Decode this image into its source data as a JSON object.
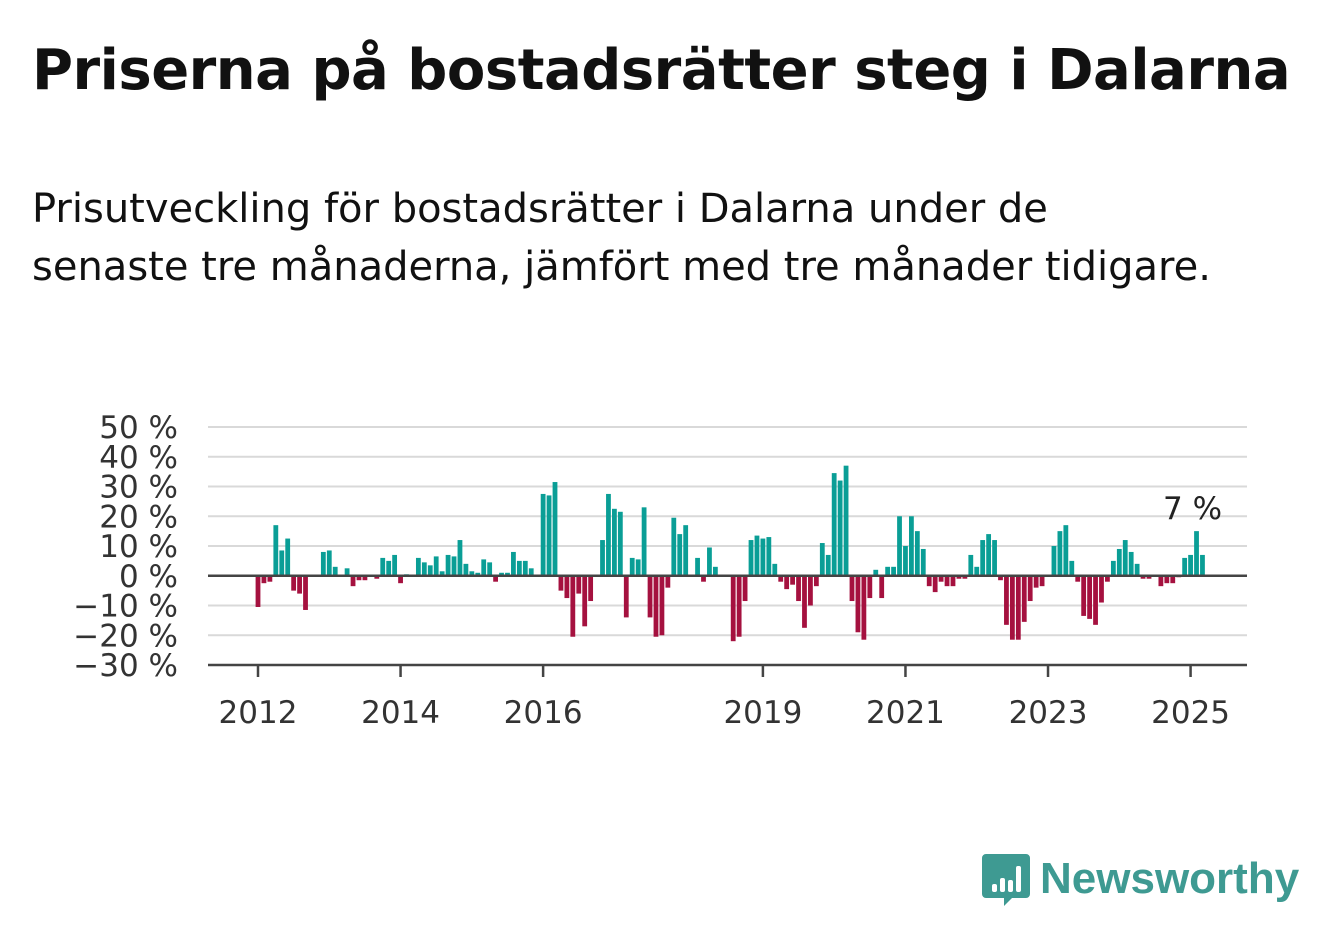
{
  "title": "Priserna på bostadsrätter steg i Dalarna",
  "subtitle": "Prisutveckling för bostadsrätter i Dalarna under de senaste tre månaderna, jämfört med tre månader tidigare.",
  "logo": {
    "text": "Newsworthy",
    "icon": "bar-chart-pin-icon"
  },
  "colors": {
    "positive": "#0a9e96",
    "negative": "#a5113f",
    "grid": "#d9d9d9",
    "axis": "#444444",
    "logo": "#3e9a92"
  },
  "chart_data": {
    "type": "bar",
    "title": "Priserna på bostadsrätter steg i Dalarna",
    "ylabel": "",
    "ylim": [
      -30,
      50
    ],
    "y_ticks": [
      50,
      40,
      30,
      20,
      10,
      0,
      -10,
      -20,
      -30
    ],
    "y_tick_labels": [
      "50 %",
      "40 %",
      "30 %",
      "20 %",
      "10 %",
      "0 %",
      "−10 %",
      "−20 %",
      "−30 %"
    ],
    "x_ticks": [
      {
        "label": "2012",
        "index": 0
      },
      {
        "label": "2014",
        "index": 24
      },
      {
        "label": "2016",
        "index": 48
      },
      {
        "label": "2019",
        "index": 85
      },
      {
        "label": "2021",
        "index": 109
      },
      {
        "label": "2023",
        "index": 133
      },
      {
        "label": "2025",
        "index": 157
      }
    ],
    "last_label": "7 %",
    "grid": true,
    "values": [
      -10.5,
      -2.5,
      -2,
      17,
      8.5,
      12.5,
      -5,
      -6,
      -11.5,
      0,
      0,
      8,
      8.5,
      3,
      0,
      2.5,
      -3.5,
      -1.5,
      -1.5,
      0,
      -1,
      6,
      5,
      7,
      -2.5,
      0.5,
      0,
      6,
      4.5,
      3.5,
      6.5,
      1.5,
      7,
      6.5,
      12,
      4,
      1.5,
      1,
      5.5,
      4.5,
      -2,
      1,
      1,
      8,
      5,
      5,
      2.5,
      0,
      27.5,
      27,
      31.5,
      -5,
      -7.5,
      -20.5,
      -6,
      -17,
      -8.5,
      0,
      12,
      27.5,
      22.5,
      21.5,
      -14,
      6,
      5.5,
      23,
      -14,
      -20.5,
      -20,
      -4,
      19.5,
      14,
      17,
      0,
      6,
      -2,
      9.5,
      3,
      0,
      0,
      -22,
      -20.5,
      -8.5,
      12,
      13.5,
      12.5,
      13,
      4,
      -2,
      -4.5,
      -3,
      -8.5,
      -17.5,
      -10,
      -3.5,
      11,
      7,
      34.5,
      32,
      37,
      -8.5,
      -19,
      -21.5,
      -7.5,
      2,
      -7.5,
      3,
      3,
      20,
      10,
      20,
      15,
      9,
      -3.5,
      -5.5,
      -2,
      -3.5,
      -3.5,
      -1,
      -1,
      7,
      3,
      12,
      14,
      12,
      -1.5,
      -16.5,
      -21.5,
      -21.5,
      -15.5,
      -8.5,
      -4,
      -3.5,
      0,
      10,
      15,
      17,
      5,
      -2,
      -13.5,
      -14.5,
      -16.5,
      -9,
      -2,
      5,
      9,
      12,
      8,
      4,
      -1,
      -1,
      0,
      -3.5,
      -2.5,
      -2.5,
      -0.5,
      6,
      7,
      15,
      7
    ]
  }
}
